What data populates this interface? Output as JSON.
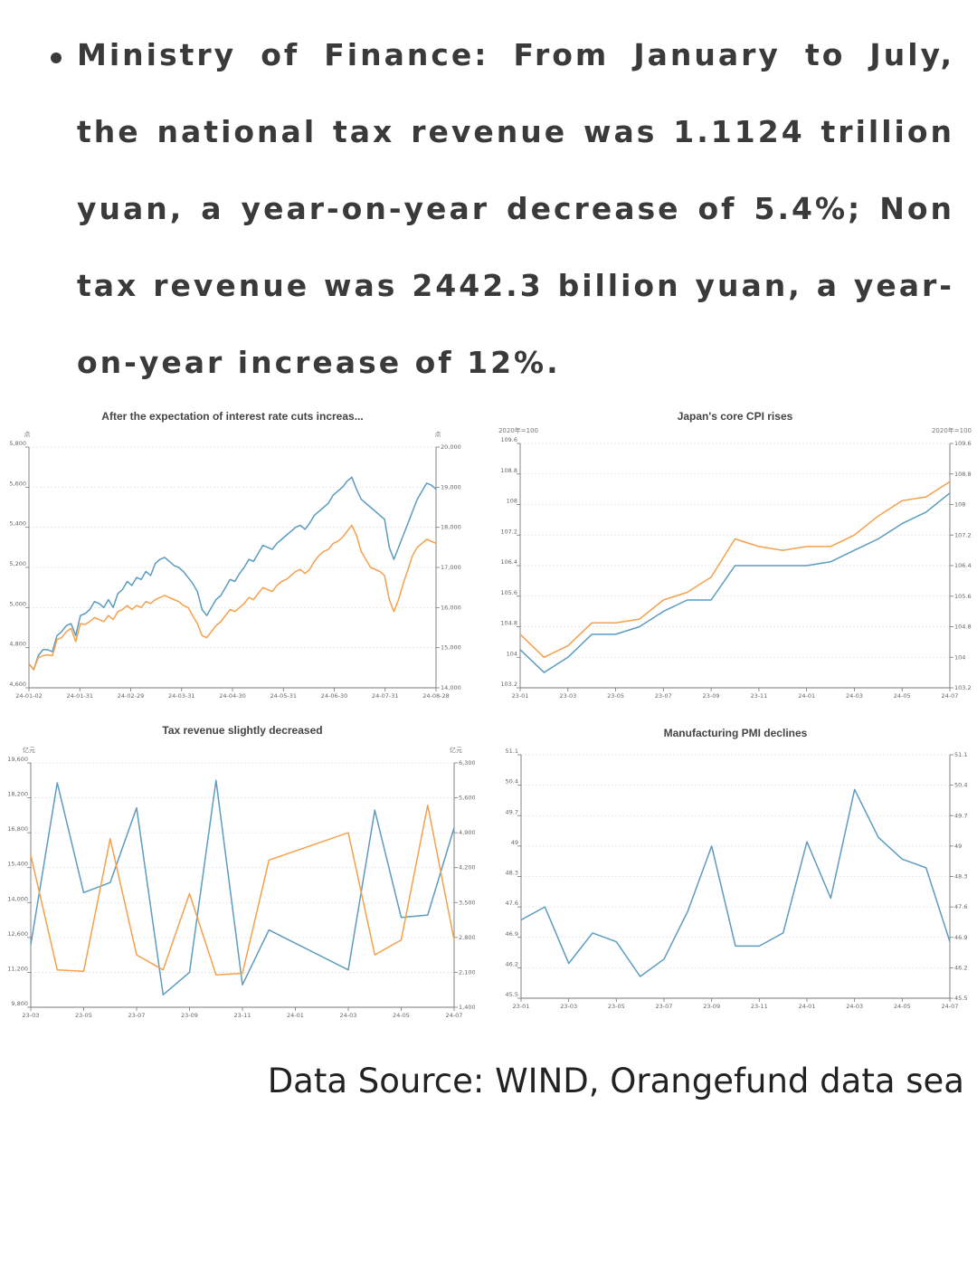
{
  "bullet": {
    "text": "Ministry of Finance: From January to July, the national tax revenue was 1.1124 trillion yuan, a year-on-year decrease of 5.4%; Non tax revenue was 2442.3 billion yuan, a year-on-year increase of 12%."
  },
  "source": "Data Source: WIND, Orangefund data sea",
  "colors": {
    "blue": "#5b9cbf",
    "orange": "#f5a04c",
    "axis": "#777777",
    "grid": "#e3e3e3",
    "title": "#444444"
  },
  "chart_data": [
    {
      "id": "c1",
      "type": "line",
      "title": "After the expectation of interest rate cuts increas...",
      "left_unit": "点",
      "right_unit": "点",
      "y_left": {
        "min": 4600,
        "max": 5800,
        "ticks": [
          "4,600",
          "4,800",
          "5,000",
          "5,200",
          "5,400",
          "5,600",
          "5,800"
        ]
      },
      "y_right": {
        "min": 14000,
        "max": 20000,
        "ticks": [
          "14,000",
          "15,000",
          "16,000",
          "17,000",
          "18,000",
          "19,000",
          "20,000"
        ]
      },
      "x_labels": [
        "24-01-02",
        "24-01-31",
        "24-02-29",
        "24-03-31",
        "24-04-30",
        "24-05-31",
        "24-06-30",
        "24-07-31",
        "24-08-28"
      ],
      "series": [
        {
          "name": "blue",
          "color": "#5b9cbf",
          "axis": "left",
          "values": [
            4720,
            4690,
            4760,
            4790,
            4790,
            4780,
            4860,
            4880,
            4910,
            4920,
            4860,
            4960,
            4970,
            4990,
            5030,
            5020,
            5000,
            5040,
            5000,
            5070,
            5090,
            5130,
            5110,
            5150,
            5140,
            5180,
            5160,
            5220,
            5240,
            5250,
            5230,
            5210,
            5200,
            5180,
            5150,
            5120,
            5080,
            4990,
            4960,
            5000,
            5040,
            5060,
            5100,
            5140,
            5130,
            5170,
            5200,
            5240,
            5230,
            5270,
            5310,
            5300,
            5290,
            5320,
            5340,
            5360,
            5380,
            5400,
            5410,
            5390,
            5420,
            5460,
            5480,
            5500,
            5520,
            5560,
            5580,
            5600,
            5630,
            5650,
            5590,
            5540,
            5520,
            5500,
            5480,
            5460,
            5440,
            5300,
            5240,
            5300,
            5360,
            5420,
            5480,
            5540,
            5580,
            5620,
            5610,
            5590
          ]
        },
        {
          "name": "orange",
          "color": "#f5a04c",
          "axis": "right",
          "values": [
            14600,
            14450,
            14750,
            14800,
            14820,
            14800,
            15200,
            15250,
            15400,
            15480,
            15150,
            15600,
            15580,
            15650,
            15750,
            15700,
            15650,
            15800,
            15700,
            15900,
            15950,
            16050,
            15950,
            16050,
            16000,
            16150,
            16100,
            16200,
            16250,
            16300,
            16250,
            16200,
            16150,
            16050,
            16000,
            15800,
            15600,
            15300,
            15250,
            15400,
            15550,
            15650,
            15800,
            15950,
            15900,
            16000,
            16100,
            16250,
            16200,
            16350,
            16500,
            16450,
            16400,
            16550,
            16650,
            16700,
            16800,
            16900,
            16950,
            16850,
            16950,
            17150,
            17300,
            17400,
            17450,
            17600,
            17650,
            17750,
            17900,
            18050,
            17800,
            17400,
            17200,
            17000,
            16950,
            16900,
            16800,
            16200,
            15900,
            16200,
            16600,
            16950,
            17300,
            17500,
            17600,
            17700,
            17650,
            17600
          ]
        }
      ]
    },
    {
      "id": "c2",
      "type": "line",
      "title": "Japan's core CPI rises",
      "left_unit": "2020年=100",
      "right_unit": "2020年=100",
      "y_left": {
        "min": 103.2,
        "max": 109.6,
        "ticks": [
          "103.2",
          "104",
          "104.8",
          "105.6",
          "106.4",
          "107.2",
          "108",
          "108.8",
          "109.6"
        ]
      },
      "y_right": {
        "min": 103.2,
        "max": 109.6,
        "ticks": [
          "103.2",
          "104",
          "104.8",
          "105.6",
          "106.4",
          "107.2",
          "108",
          "108.8",
          "109.6"
        ]
      },
      "x_labels": [
        "23-01",
        "23-03",
        "23-05",
        "23-07",
        "23-09",
        "23-11",
        "24-01",
        "24-03",
        "24-05",
        "24-07"
      ],
      "series": [
        {
          "name": "blue",
          "color": "#5b9cbf",
          "axis": "left",
          "values": [
            104.2,
            103.6,
            104.0,
            104.6,
            104.6,
            104.8,
            105.2,
            105.5,
            105.5,
            106.4,
            106.4,
            106.4,
            106.4,
            106.5,
            106.8,
            107.1,
            107.5,
            107.8,
            108.3
          ]
        },
        {
          "name": "orange",
          "color": "#f5a04c",
          "axis": "left",
          "values": [
            104.6,
            104.0,
            104.3,
            104.9,
            104.9,
            105.0,
            105.5,
            105.7,
            106.1,
            107.1,
            106.9,
            106.8,
            106.9,
            106.9,
            107.2,
            107.7,
            108.1,
            108.2,
            108.6
          ]
        }
      ]
    },
    {
      "id": "c3",
      "type": "line",
      "title": "Tax revenue slightly decreased",
      "left_unit": "亿元",
      "right_unit": "亿元",
      "y_left": {
        "min": 9800,
        "max": 19600,
        "ticks": [
          "9,800",
          "11,200",
          "12,600",
          "14,000",
          "15,400",
          "16,800",
          "18,200",
          "19,600"
        ]
      },
      "y_right": {
        "min": 1400,
        "max": 6300,
        "ticks": [
          "1,400",
          "2,100",
          "2,800",
          "3,500",
          "4,200",
          "4,900",
          "5,600",
          "6,300"
        ]
      },
      "x_labels": [
        "23-03",
        "23-05",
        "23-07",
        "23-09",
        "23-11",
        "24-01",
        "24-03",
        "24-05",
        "24-07"
      ],
      "series": [
        {
          "name": "blue",
          "color": "#5b9cbf",
          "axis": "left",
          "x_idx": [
            0,
            1,
            2,
            3,
            4,
            5,
            6,
            7,
            8,
            9,
            12,
            13,
            14,
            15,
            16
          ],
          "values": [
            12300,
            18800,
            14400,
            14800,
            17800,
            10300,
            11200,
            18900,
            10700,
            12900,
            11300,
            17700,
            13400,
            13500,
            17000
          ]
        },
        {
          "name": "orange",
          "color": "#f5a04c",
          "axis": "right",
          "x_idx": [
            0,
            1,
            2,
            3,
            4,
            5,
            6,
            7,
            8,
            9,
            12,
            13,
            14,
            15,
            16
          ],
          "values": [
            4450,
            2150,
            2120,
            4780,
            2450,
            2150,
            3680,
            2050,
            2080,
            4350,
            4900,
            2450,
            2750,
            5450,
            2750
          ]
        }
      ]
    },
    {
      "id": "c4",
      "type": "line",
      "title": "Manufacturing PMI declines",
      "left_unit": "",
      "right_unit": "",
      "y_left": {
        "min": 45.5,
        "max": 51.1,
        "ticks": [
          "45.5",
          "46.2",
          "46.9",
          "47.6",
          "48.3",
          "49",
          "49.7",
          "50.4",
          "51.1"
        ]
      },
      "y_right": {
        "min": 45.5,
        "max": 51.1,
        "ticks": [
          "45.5",
          "46.2",
          "46.9",
          "47.6",
          "48.3",
          "49",
          "49.7",
          "50.4",
          "51.1"
        ]
      },
      "x_labels": [
        "23-01",
        "23-03",
        "23-05",
        "23-07",
        "23-09",
        "23-11",
        "24-01",
        "24-03",
        "24-05",
        "24-07"
      ],
      "series": [
        {
          "name": "blue",
          "color": "#5b9cbf",
          "axis": "left",
          "values": [
            47.3,
            47.6,
            46.3,
            47.0,
            46.8,
            46.0,
            46.4,
            47.5,
            49.0,
            46.7,
            46.7,
            47.0,
            49.1,
            47.8,
            50.3,
            49.2,
            48.7,
            48.5,
            46.8
          ]
        }
      ]
    }
  ]
}
